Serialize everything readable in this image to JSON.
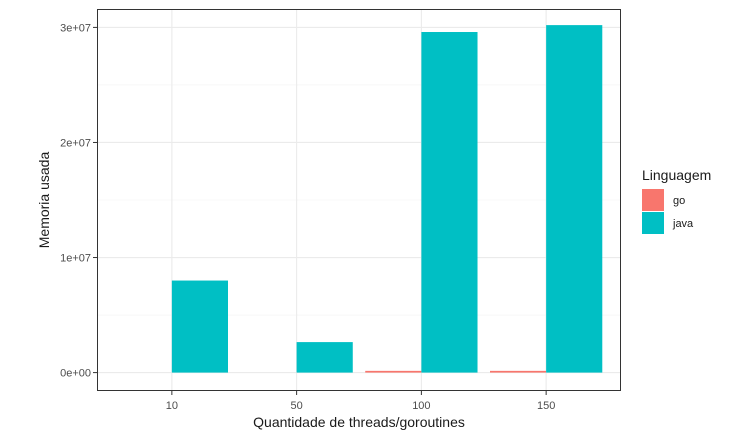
{
  "chart_data": {
    "type": "bar",
    "title": "",
    "xlabel": "Quantidade de threads/goroutines",
    "ylabel": "Memoria usada",
    "categories": [
      "10",
      "50",
      "100",
      "150"
    ],
    "series": [
      {
        "name": "go",
        "color": "#F8766D",
        "values": [
          0,
          0,
          150000,
          150000
        ]
      },
      {
        "name": "java",
        "color": "#00BFC4",
        "values": [
          8000000,
          2650000,
          29600000,
          30200000
        ]
      }
    ],
    "ylim": [
      -1600000,
      31600000
    ],
    "yticks": [
      0,
      10000000,
      20000000,
      30000000
    ],
    "ytick_labels": [
      "0e+00",
      "1e+07",
      "2e+07",
      "3e+07"
    ],
    "legend": {
      "title": "Linguagem",
      "placement": "right"
    },
    "grid": true
  }
}
